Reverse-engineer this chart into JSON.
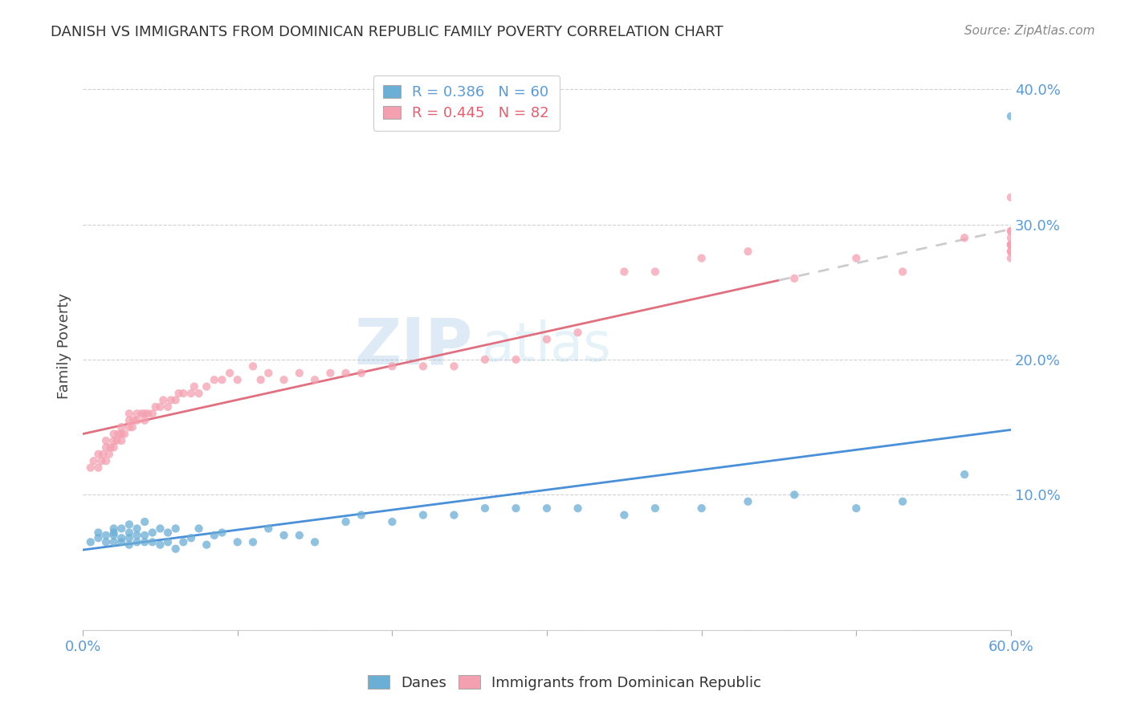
{
  "title": "DANISH VS IMMIGRANTS FROM DOMINICAN REPUBLIC FAMILY POVERTY CORRELATION CHART",
  "source": "Source: ZipAtlas.com",
  "ylabel": "Family Poverty",
  "xlim": [
    0.0,
    0.6
  ],
  "ylim": [
    0.0,
    0.42
  ],
  "blue_color": "#6baed6",
  "pink_color": "#f4a0b0",
  "pink_line_color": "#e07080",
  "blue_line_color": "#4a90d9",
  "blue_R": 0.386,
  "blue_N": 60,
  "pink_R": 0.445,
  "pink_N": 82,
  "legend_label_blue": "Danes",
  "legend_label_pink": "Immigrants from Dominican Republic",
  "danes_x": [
    0.005,
    0.01,
    0.01,
    0.015,
    0.015,
    0.02,
    0.02,
    0.02,
    0.02,
    0.025,
    0.025,
    0.025,
    0.03,
    0.03,
    0.03,
    0.03,
    0.035,
    0.035,
    0.035,
    0.04,
    0.04,
    0.04,
    0.045,
    0.045,
    0.05,
    0.05,
    0.055,
    0.055,
    0.06,
    0.06,
    0.065,
    0.07,
    0.075,
    0.08,
    0.085,
    0.09,
    0.1,
    0.11,
    0.12,
    0.13,
    0.14,
    0.15,
    0.17,
    0.18,
    0.2,
    0.22,
    0.24,
    0.26,
    0.28,
    0.3,
    0.32,
    0.35,
    0.37,
    0.4,
    0.43,
    0.46,
    0.5,
    0.53,
    0.57,
    0.6
  ],
  "danes_y": [
    0.065,
    0.068,
    0.072,
    0.065,
    0.07,
    0.065,
    0.07,
    0.072,
    0.075,
    0.065,
    0.068,
    0.075,
    0.063,
    0.068,
    0.072,
    0.078,
    0.065,
    0.07,
    0.075,
    0.065,
    0.07,
    0.08,
    0.065,
    0.072,
    0.063,
    0.075,
    0.065,
    0.072,
    0.06,
    0.075,
    0.065,
    0.068,
    0.075,
    0.063,
    0.07,
    0.072,
    0.065,
    0.065,
    0.075,
    0.07,
    0.07,
    0.065,
    0.08,
    0.085,
    0.08,
    0.085,
    0.085,
    0.09,
    0.09,
    0.09,
    0.09,
    0.085,
    0.09,
    0.09,
    0.095,
    0.1,
    0.09,
    0.095,
    0.115,
    0.38
  ],
  "imm_x": [
    0.005,
    0.007,
    0.01,
    0.01,
    0.012,
    0.013,
    0.015,
    0.015,
    0.015,
    0.017,
    0.018,
    0.02,
    0.02,
    0.02,
    0.022,
    0.023,
    0.025,
    0.025,
    0.025,
    0.027,
    0.03,
    0.03,
    0.03,
    0.032,
    0.033,
    0.035,
    0.035,
    0.038,
    0.04,
    0.04,
    0.042,
    0.045,
    0.047,
    0.05,
    0.052,
    0.055,
    0.057,
    0.06,
    0.062,
    0.065,
    0.07,
    0.072,
    0.075,
    0.08,
    0.085,
    0.09,
    0.095,
    0.1,
    0.11,
    0.115,
    0.12,
    0.13,
    0.14,
    0.15,
    0.16,
    0.17,
    0.18,
    0.2,
    0.22,
    0.24,
    0.26,
    0.28,
    0.3,
    0.32,
    0.35,
    0.37,
    0.4,
    0.43,
    0.46,
    0.5,
    0.53,
    0.57,
    0.6,
    0.6,
    0.6,
    0.6,
    0.6,
    0.6,
    0.6,
    0.6,
    0.6,
    0.6
  ],
  "imm_y": [
    0.12,
    0.125,
    0.12,
    0.13,
    0.125,
    0.13,
    0.125,
    0.135,
    0.14,
    0.13,
    0.135,
    0.135,
    0.14,
    0.145,
    0.14,
    0.145,
    0.14,
    0.145,
    0.15,
    0.145,
    0.15,
    0.155,
    0.16,
    0.15,
    0.155,
    0.16,
    0.155,
    0.16,
    0.155,
    0.16,
    0.16,
    0.16,
    0.165,
    0.165,
    0.17,
    0.165,
    0.17,
    0.17,
    0.175,
    0.175,
    0.175,
    0.18,
    0.175,
    0.18,
    0.185,
    0.185,
    0.19,
    0.185,
    0.195,
    0.185,
    0.19,
    0.185,
    0.19,
    0.185,
    0.19,
    0.19,
    0.19,
    0.195,
    0.195,
    0.195,
    0.2,
    0.2,
    0.215,
    0.22,
    0.265,
    0.265,
    0.275,
    0.28,
    0.26,
    0.275,
    0.265,
    0.29,
    0.32,
    0.28,
    0.285,
    0.295,
    0.275,
    0.285,
    0.28,
    0.29,
    0.285,
    0.295
  ]
}
